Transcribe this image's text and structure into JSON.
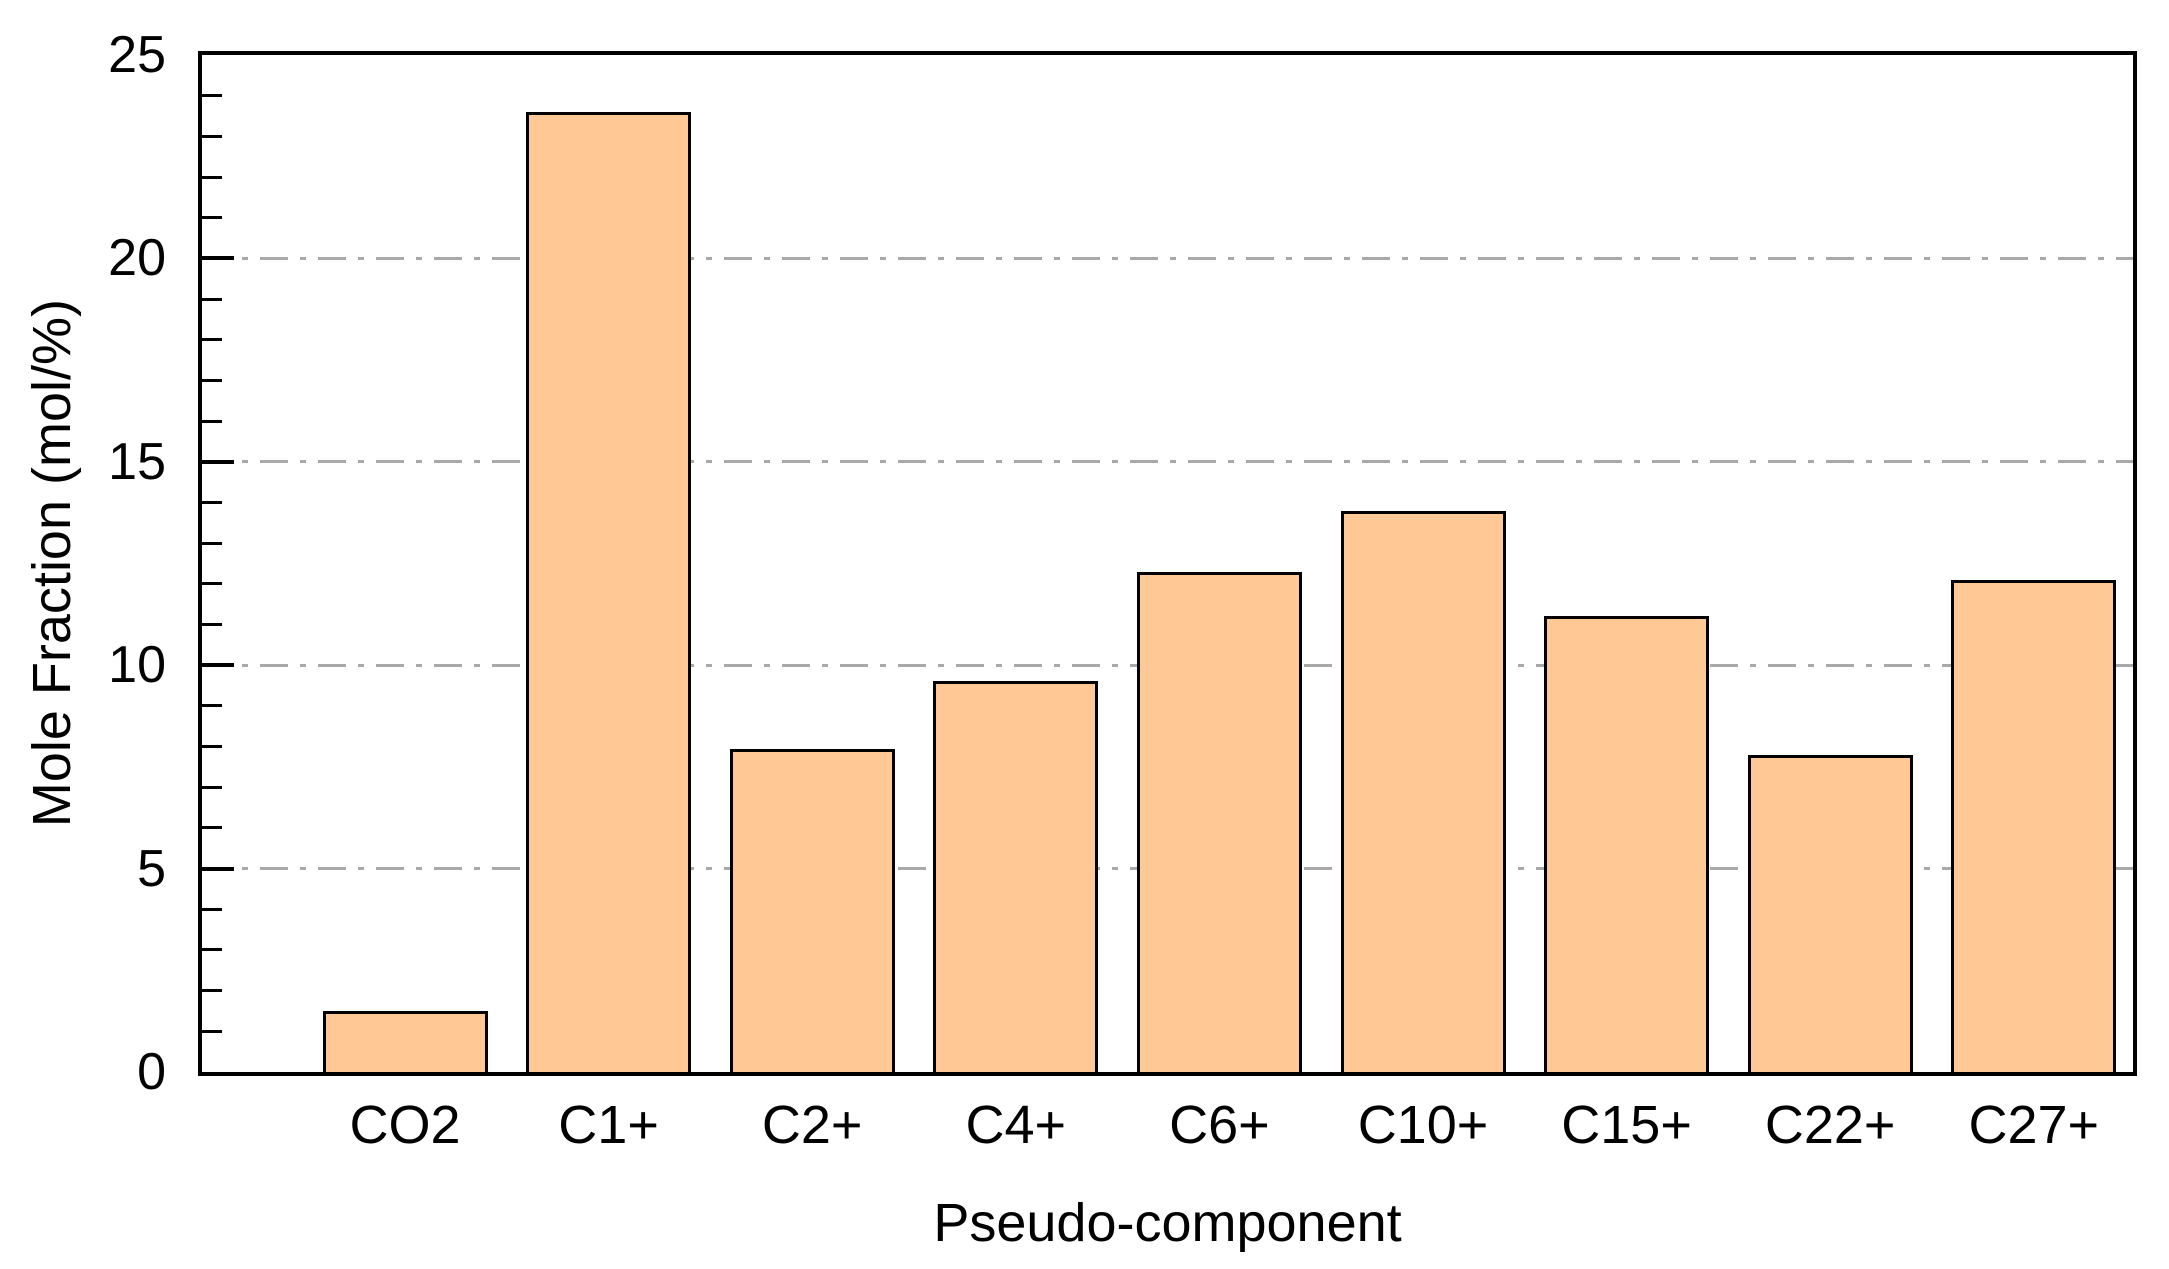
{
  "chart_data": {
    "type": "bar",
    "title": "",
    "xlabel": "Pseudo-component",
    "ylabel": "Mole Fraction (mol/%)",
    "categories": [
      "CO2",
      "C1+",
      "C2+",
      "C4+",
      "C6+",
      "C10+",
      "C15+",
      "C22+",
      "C27+"
    ],
    "values": [
      1.5,
      23.6,
      7.95,
      9.6,
      12.3,
      13.8,
      11.2,
      7.8,
      12.1
    ],
    "ylim": [
      0,
      25
    ],
    "y_major_tick_step": 5,
    "y_minor_tick_step": 1,
    "y_tick_labels": [
      "0",
      "5",
      "10",
      "15",
      "20",
      "25"
    ],
    "gridline_values": [
      5,
      10,
      15,
      20
    ],
    "grid_style": "horizontal dash-dot",
    "legend": "none",
    "colors": {
      "bar_fill": "#FFC895",
      "bar_border": "#000000",
      "gridline": "#A9A9A9",
      "axis": "#000000",
      "background": "#FFFFFF",
      "text": "#000000"
    }
  }
}
